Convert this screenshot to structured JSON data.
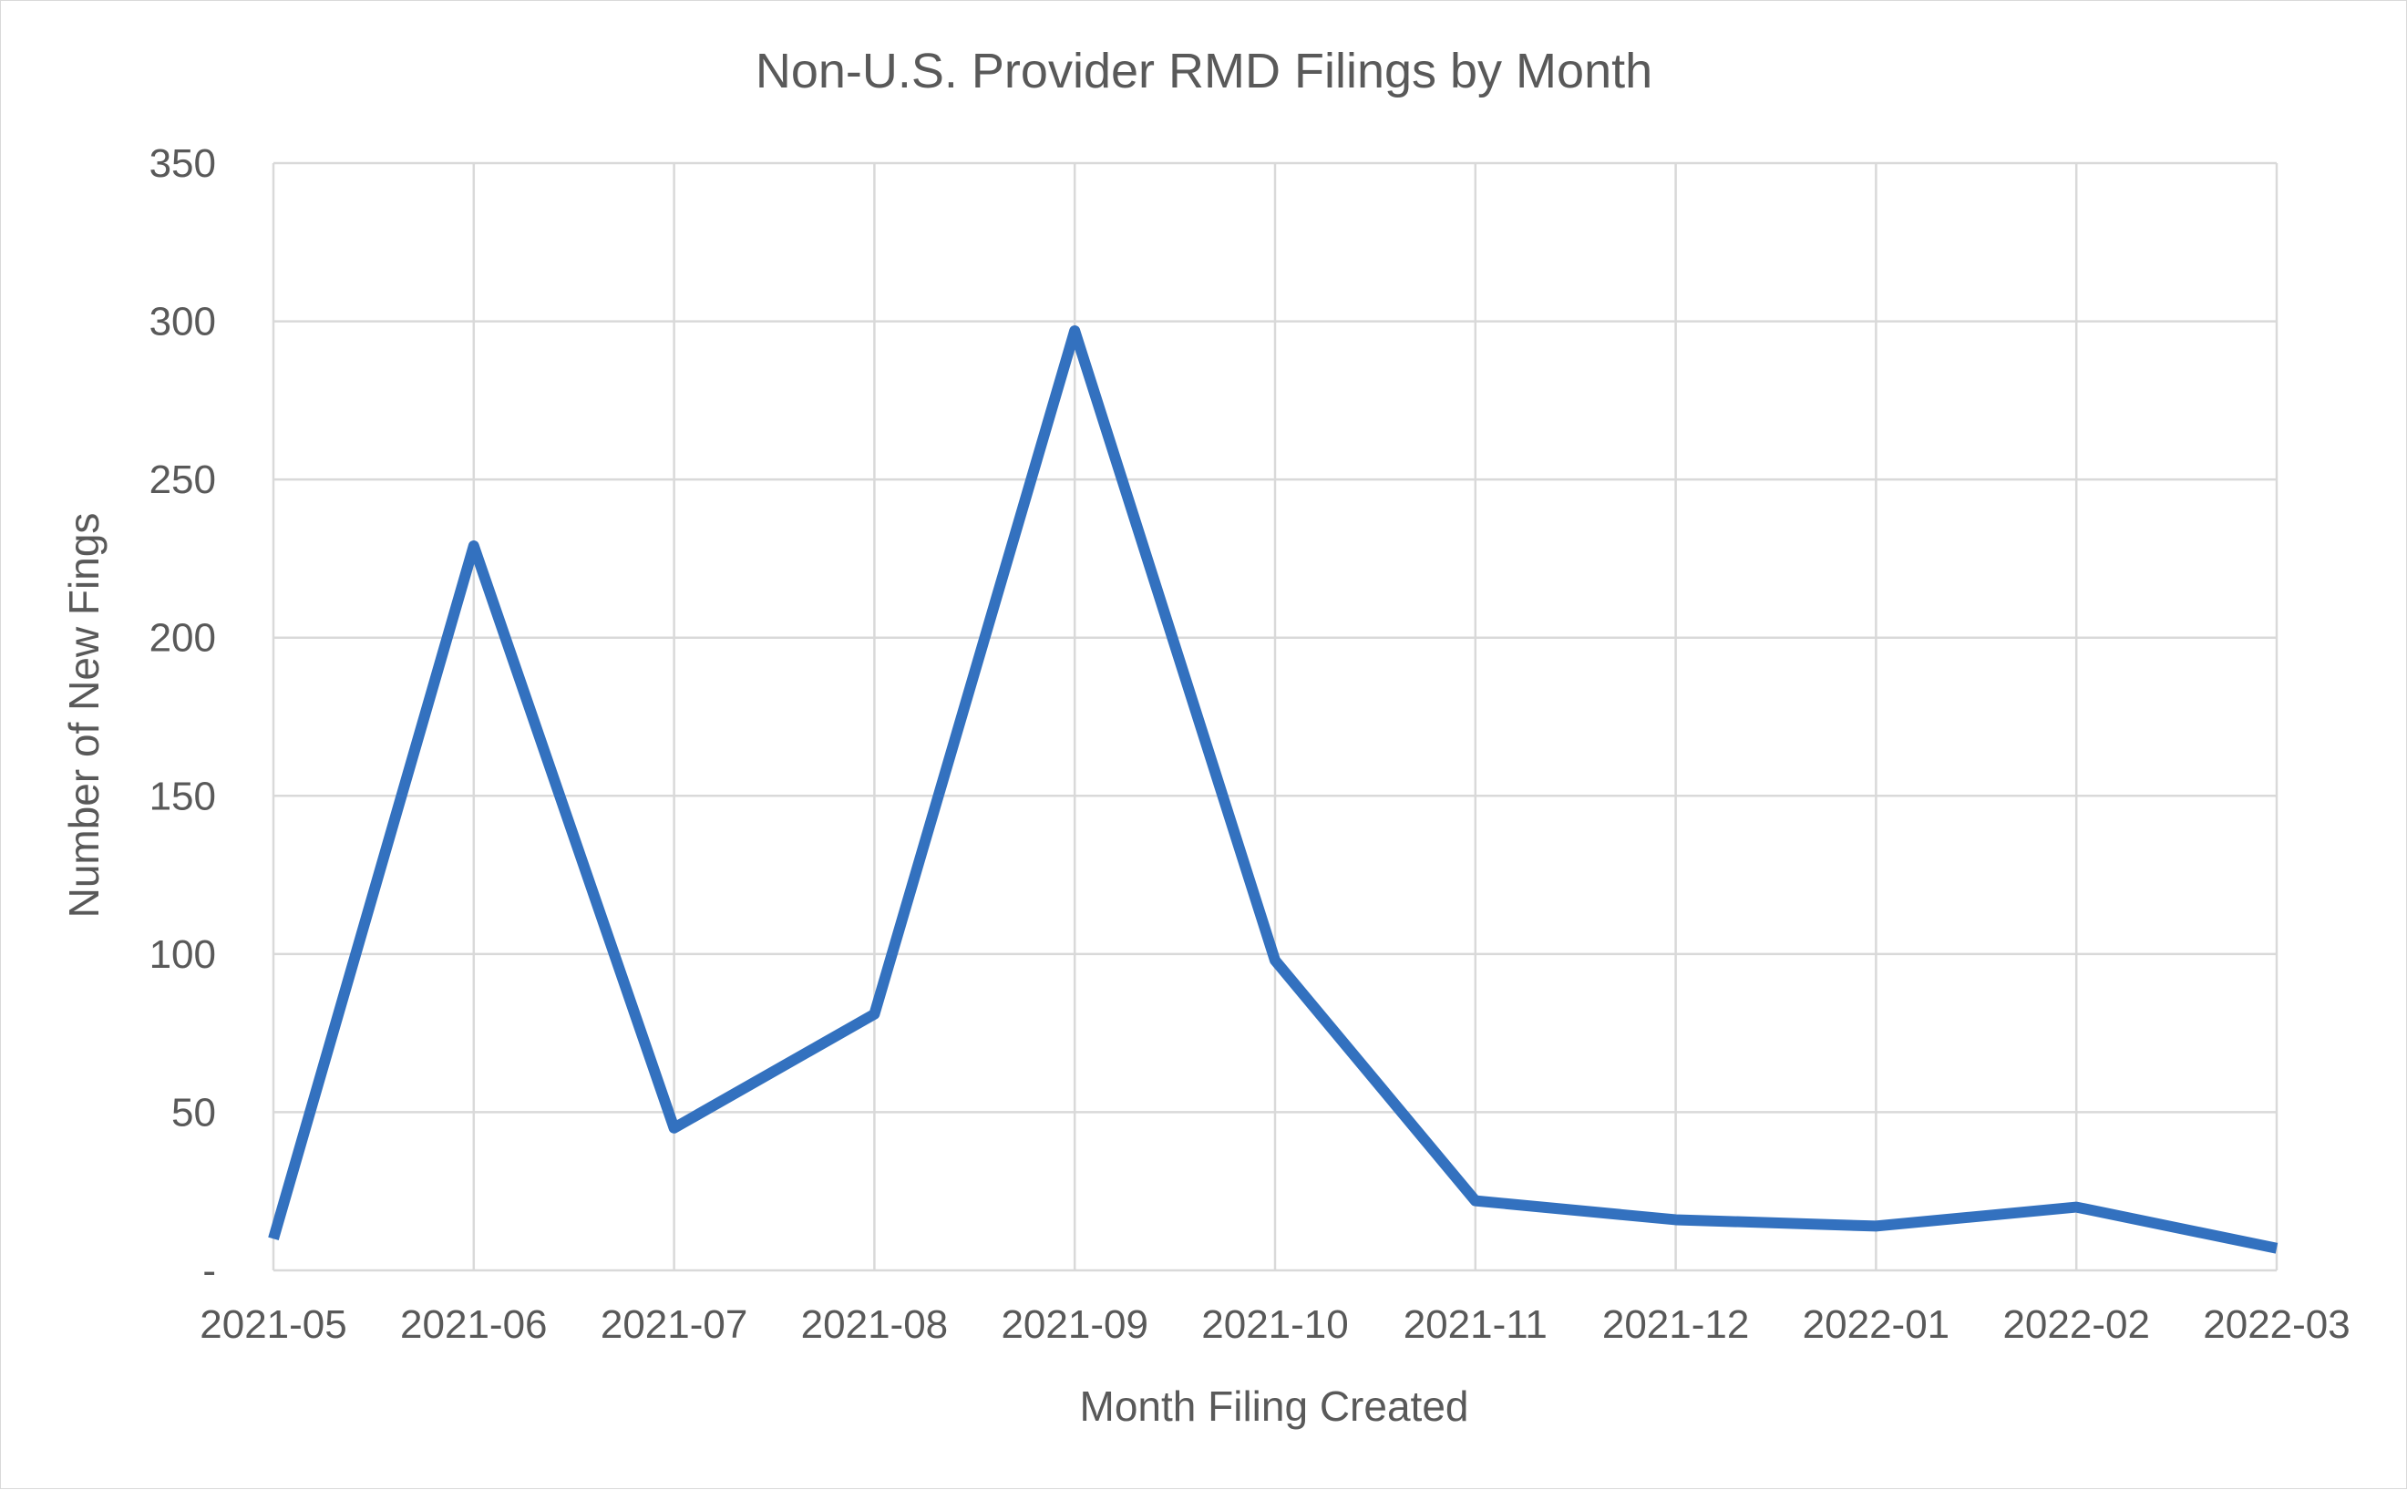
{
  "chart_data": {
    "type": "line",
    "title": "Non-U.S. Provider RMD Filings by Month",
    "xlabel": "Month Filing Created",
    "ylabel": "Number of New Fings",
    "categories": [
      "2021-05",
      "2021-06",
      "2021-07",
      "2021-08",
      "2021-09",
      "2021-10",
      "2021-11",
      "2021-12",
      "2022-01",
      "2022-02",
      "2022-03"
    ],
    "series": [
      {
        "values": [
          10,
          229,
          45,
          81,
          297,
          98,
          22,
          16,
          14,
          20,
          7
        ],
        "color": "#3371bf"
      }
    ],
    "ylim": [
      0,
      350
    ],
    "y_ticks": [
      {
        "value": 0,
        "label": "-"
      },
      {
        "value": 50,
        "label": "50"
      },
      {
        "value": 100,
        "label": "100"
      },
      {
        "value": 150,
        "label": "150"
      },
      {
        "value": 200,
        "label": "200"
      },
      {
        "value": 250,
        "label": "250"
      },
      {
        "value": 300,
        "label": "300"
      },
      {
        "value": 350,
        "label": "350"
      }
    ],
    "grid": true,
    "legend": "none"
  }
}
